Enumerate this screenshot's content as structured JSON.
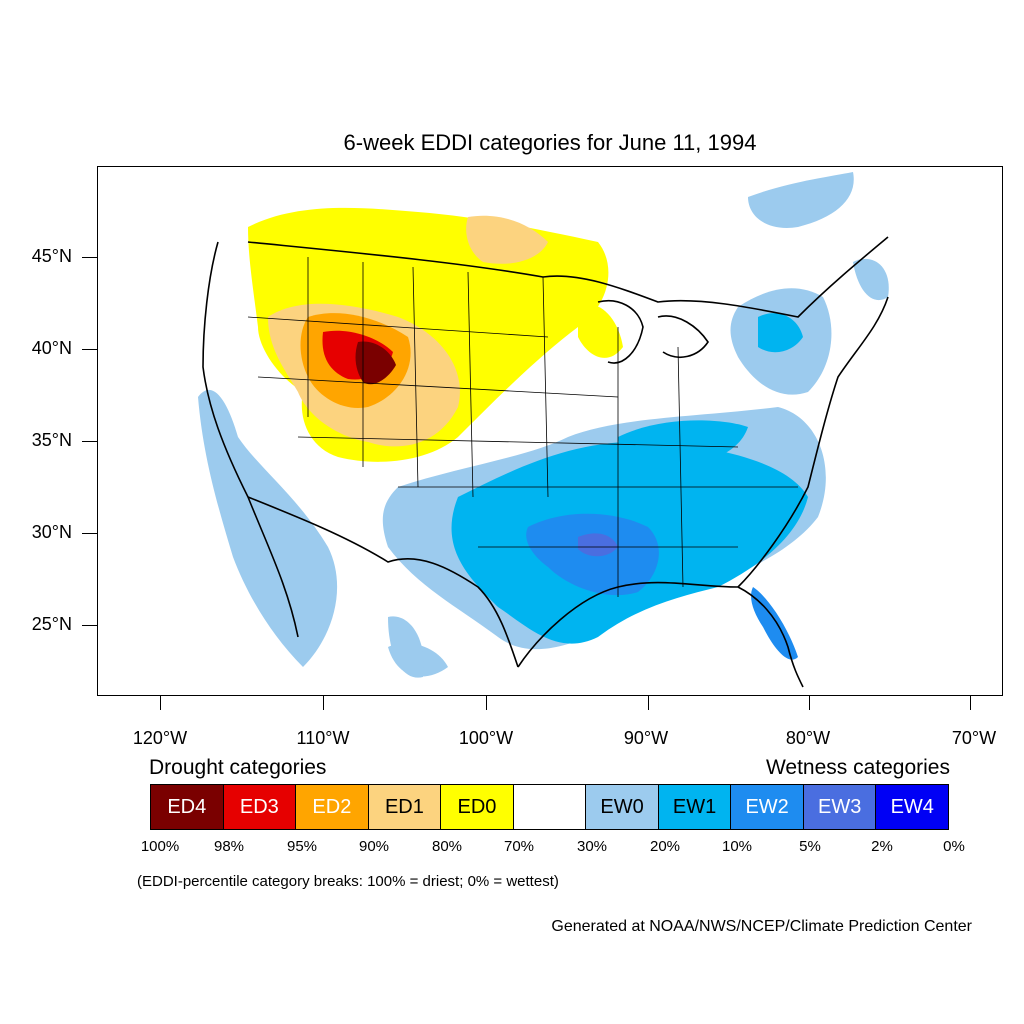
{
  "title": "6-week EDDI categories for June 11, 1994",
  "lat_labels": [
    "45°N",
    "40°N",
    "35°N",
    "30°N",
    "25°N"
  ],
  "lon_labels": [
    "120°W",
    "110°W",
    "100°W",
    "90°W",
    "80°W",
    "70°W"
  ],
  "legend": {
    "drought_heading": "Drought categories",
    "wetness_heading": "Wetness categories",
    "categories": [
      {
        "label": "ED4",
        "color": "#7a0000",
        "text_color": "#ffffff"
      },
      {
        "label": "ED3",
        "color": "#e60000",
        "text_color": "#ffffff"
      },
      {
        "label": "ED2",
        "color": "#ffa500",
        "text_color": "#ffffff"
      },
      {
        "label": "ED1",
        "color": "#fcd37f",
        "text_color": "#000000"
      },
      {
        "label": "ED0",
        "color": "#ffff00",
        "text_color": "#000000"
      },
      {
        "label": "",
        "color": "#ffffff",
        "text_color": "#000000"
      },
      {
        "label": "EW0",
        "color": "#9ccbee",
        "text_color": "#000000"
      },
      {
        "label": "EW1",
        "color": "#00b4f0",
        "text_color": "#000000"
      },
      {
        "label": "EW2",
        "color": "#1e8cf0",
        "text_color": "#ffffff"
      },
      {
        "label": "EW3",
        "color": "#4a6ee0",
        "text_color": "#ffffff"
      },
      {
        "label": "EW4",
        "color": "#0000f5",
        "text_color": "#ffffff"
      }
    ],
    "percent_breaks": [
      "100%",
      "98%",
      "95%",
      "90%",
      "80%",
      "70%",
      "30%",
      "20%",
      "10%",
      "5%",
      "2%",
      "0%"
    ]
  },
  "note": "(EDDI-percentile category breaks: 100% = driest; 0% = wettest)",
  "credit": "Generated at NOAA/NWS/NCEP/Climate Prediction Center"
}
